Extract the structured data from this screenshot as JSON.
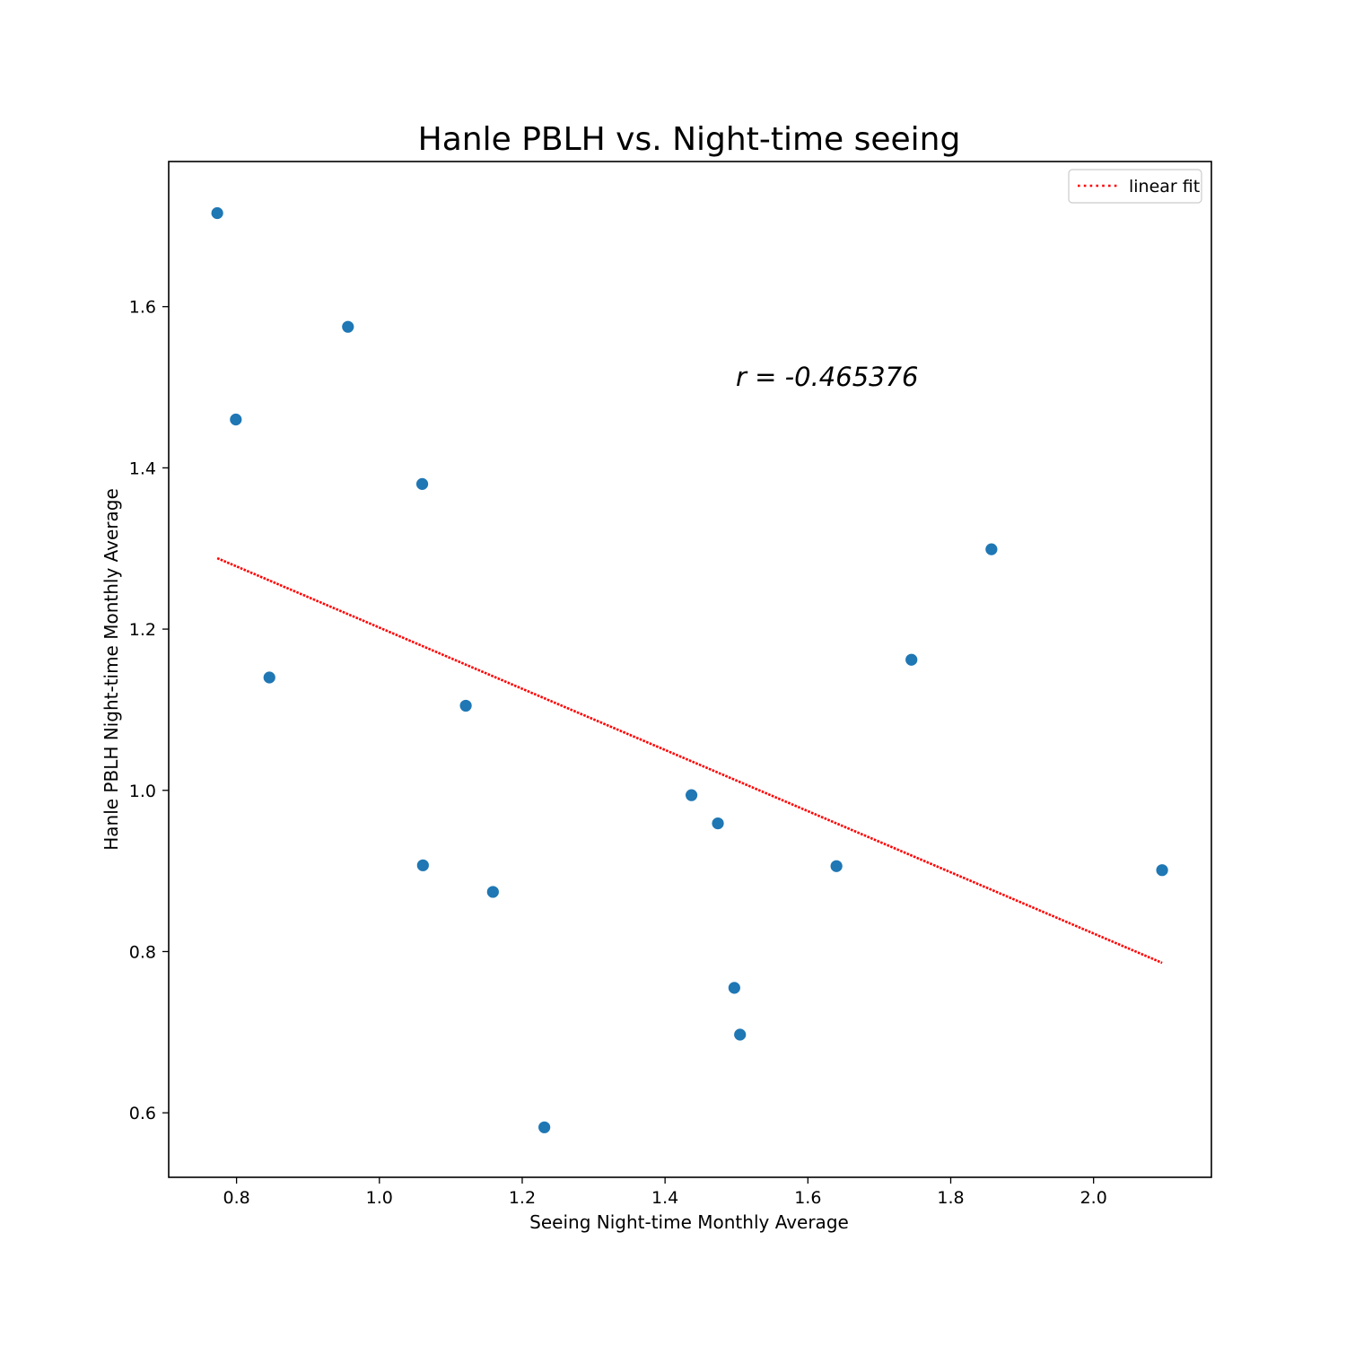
{
  "chart_data": {
    "type": "scatter",
    "title": "Hanle PBLH vs. Night-time seeing",
    "xlabel": "Seeing Night-time Monthly Average",
    "ylabel": "Hanle PBLH Night-time Monthly Average",
    "xlim": [
      0.705,
      2.165
    ],
    "ylim": [
      0.52,
      1.78
    ],
    "xticks": [
      0.8,
      1.0,
      1.2,
      1.4,
      1.6,
      1.8,
      2.0
    ],
    "xtick_labels": [
      "0.8",
      "1.0",
      "1.2",
      "1.4",
      "1.6",
      "1.8",
      "2.0"
    ],
    "yticks": [
      0.6,
      0.8,
      1.0,
      1.2,
      1.4,
      1.6
    ],
    "ytick_labels": [
      "0.6",
      "0.8",
      "1.0",
      "1.2",
      "1.4",
      "1.6"
    ],
    "grid": false,
    "legend_position": "top-right",
    "series": [
      {
        "kind": "scatter",
        "color": "#1f77b4",
        "points": [
          {
            "x": 0.773,
            "y": 1.716
          },
          {
            "x": 0.799,
            "y": 1.46
          },
          {
            "x": 0.846,
            "y": 1.14
          },
          {
            "x": 0.956,
            "y": 1.575
          },
          {
            "x": 1.06,
            "y": 1.38
          },
          {
            "x": 1.061,
            "y": 0.907
          },
          {
            "x": 1.121,
            "y": 1.105
          },
          {
            "x": 1.159,
            "y": 0.874
          },
          {
            "x": 1.231,
            "y": 0.582
          },
          {
            "x": 1.437,
            "y": 0.994
          },
          {
            "x": 1.474,
            "y": 0.959
          },
          {
            "x": 1.497,
            "y": 0.755
          },
          {
            "x": 1.505,
            "y": 0.697
          },
          {
            "x": 1.64,
            "y": 0.906
          },
          {
            "x": 1.745,
            "y": 1.162
          },
          {
            "x": 1.857,
            "y": 1.299
          },
          {
            "x": 2.096,
            "y": 0.901
          }
        ]
      },
      {
        "kind": "line",
        "name": "linear fit",
        "color": "#ff0000",
        "style": "dotted",
        "points": [
          {
            "x": 0.773,
            "y": 1.288
          },
          {
            "x": 2.096,
            "y": 0.786
          }
        ]
      }
    ],
    "annotation": "r = -0.465376"
  }
}
